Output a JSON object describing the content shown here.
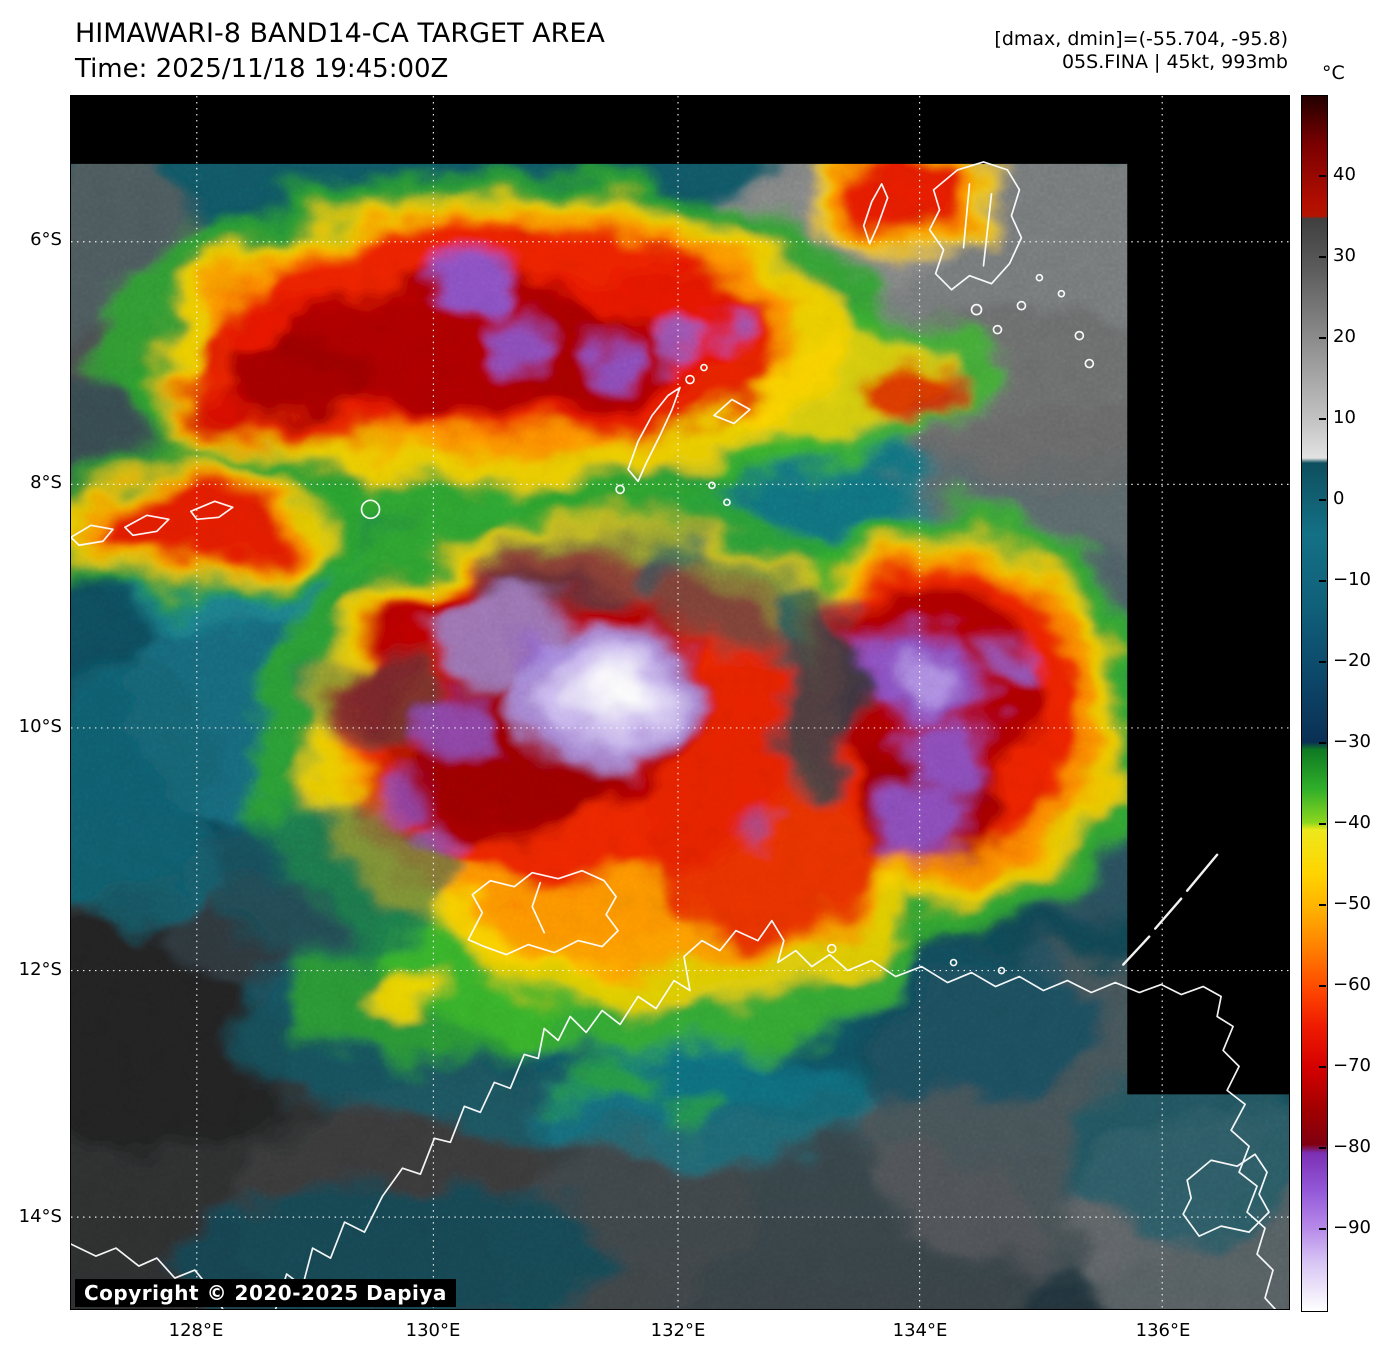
{
  "header": {
    "title": "HIMAWARI-8 BAND14-CA TARGET AREA",
    "time_line": "Time: 2025/11/18 19:45:00Z",
    "dmax_dmin_line": "[dmax, dmin]=(-55.704, -95.8)",
    "storm_line": "05S.FINA | 45kt, 993mb"
  },
  "map": {
    "copyright": "Copyright © 2020-2025 Dapiya"
  },
  "colorbar": {
    "unit": "°C",
    "ticks": [
      40,
      30,
      20,
      10,
      0,
      -10,
      -20,
      -30,
      -40,
      -50,
      -60,
      -70,
      -80,
      -90
    ],
    "range_top_c": 50,
    "range_bottom_c": -100
  },
  "axes": {
    "lat_labels": [
      "6°S",
      "8°S",
      "10°S",
      "12°S",
      "14°S"
    ],
    "lon_labels": [
      "128°E",
      "130°E",
      "132°E",
      "134°E",
      "136°E"
    ]
  },
  "chart_data": {
    "type": "heatmap",
    "title": "HIMAWARI-8 BAND14-CA TARGET AREA",
    "subtitle": "Time: 2025/11/18 19:45:00Z",
    "quantity": "Band 14 infrared brightness temperature",
    "unit": "°C",
    "x_axis": {
      "label_ticks": [
        "128°E",
        "130°E",
        "132°E",
        "134°E",
        "136°E"
      ],
      "range_deg_east": [
        127.0,
        137.0
      ]
    },
    "y_axis": {
      "label_ticks": [
        "6°S",
        "8°S",
        "10°S",
        "12°S",
        "14°S"
      ],
      "range_deg_south": [
        4.8,
        14.8
      ]
    },
    "grid": true,
    "colorbar": {
      "position": "right",
      "unit": "°C",
      "ticks": [
        40,
        30,
        20,
        10,
        0,
        -10,
        -20,
        -30,
        -40,
        -50,
        -60,
        -70,
        -80,
        -90
      ],
      "range": [
        50,
        -100
      ],
      "scale_stops": [
        {
          "t": 45,
          "c": "#7a0000"
        },
        {
          "t": 35,
          "c": "#b41400"
        },
        {
          "t": 30,
          "c": "#4a4a4a"
        },
        {
          "t": 10,
          "c": "#e2e2e2"
        },
        {
          "t": 5,
          "c": "#0e4f5e"
        },
        {
          "t": -5,
          "c": "#147085"
        },
        {
          "t": -25,
          "c": "#0a3054"
        },
        {
          "t": -30,
          "c": "#0f7a22"
        },
        {
          "t": -40,
          "c": "#ede81c"
        },
        {
          "t": -50,
          "c": "#ffb000"
        },
        {
          "t": -60,
          "c": "#ff4800"
        },
        {
          "t": -70,
          "c": "#d40000"
        },
        {
          "t": -78,
          "c": "#800010"
        },
        {
          "t": -80,
          "c": "#7c30b4"
        },
        {
          "t": -90,
          "c": "#b78ae9"
        },
        {
          "t": -100,
          "c": "#ffffff"
        }
      ]
    },
    "annotations": {
      "dmax_c": -55.704,
      "dmin_c": -95.8,
      "storm_id": "05S.FINA",
      "wind_kt": 45,
      "pressure_mb": 993
    },
    "features": [
      {
        "name": "central dense overcast (coldest tops)",
        "approx_lon_e": 131.4,
        "approx_lat_s": 9.9,
        "approx_cloud_top_c": -95
      },
      {
        "name": "eastern convective burst with very cold tops",
        "approx_lon_e": 134.0,
        "approx_lat_s": 9.8,
        "approx_cloud_top_c": -85
      },
      {
        "name": "northern convective band",
        "approx_lat_s": 6.8,
        "approx_lon_span_e": [
          128.3,
          132.5
        ],
        "approx_cloud_top_c": -75
      },
      {
        "name": "no-data black regions",
        "location": "top strip and upper-right column"
      },
      {
        "name": "clear warm land (northern Australia)",
        "location": "bottom of image",
        "approx_temp_c": 20
      }
    ]
  }
}
